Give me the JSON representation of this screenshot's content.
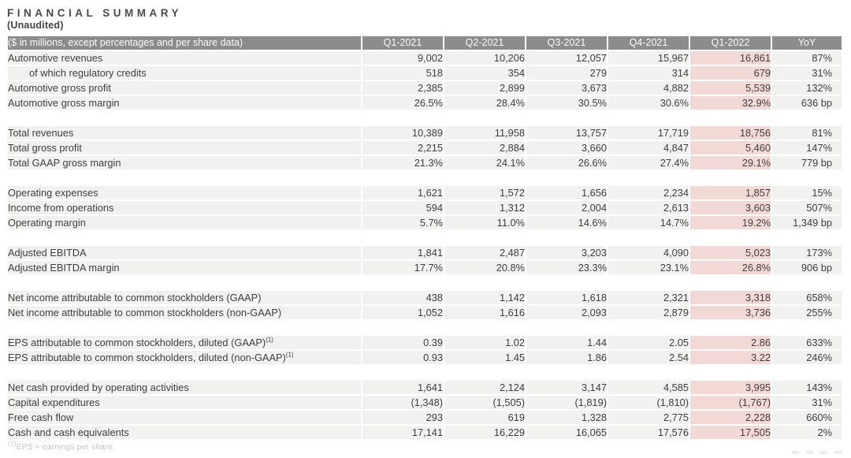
{
  "page": {
    "title": "FINANCIAL SUMMARY",
    "subtitle": "(Unaudited)",
    "footnote": {
      "sup": "(1)",
      "text": "EPS = earnings per share."
    }
  },
  "colors": {
    "header_bg": "#8c8c8c",
    "header_text": "#fbfbfb",
    "row_bg": "#f1f1f0",
    "highlight_bg": "#f3d9d6",
    "text": "#3e3e3e",
    "title_text": "#4a4a4a",
    "footnote_text": "#c4c3c2"
  },
  "table": {
    "header": {
      "label": "($ in millions, except percentages and per share data)",
      "columns": [
        "Q1-2021",
        "Q2-2021",
        "Q3-2021",
        "Q4-2021",
        "Q1-2022",
        "YoY"
      ]
    },
    "highlight_column_index": 4,
    "groups": [
      {
        "rows": [
          {
            "label": "Automotive revenues",
            "values": [
              "9,002",
              "10,206",
              "12,057",
              "15,967",
              "16,861",
              "87%"
            ]
          },
          {
            "label": "of which regulatory credits",
            "indent": true,
            "values": [
              "518",
              "354",
              "279",
              "314",
              "679",
              "31%"
            ]
          },
          {
            "label": "Automotive gross profit",
            "values": [
              "2,385",
              "2,899",
              "3,673",
              "4,882",
              "5,539",
              "132%"
            ]
          },
          {
            "label": "Automotive gross margin",
            "values": [
              "26.5%",
              "28.4%",
              "30.5%",
              "30.6%",
              "32.9%",
              "636 bp"
            ]
          }
        ]
      },
      {
        "rows": [
          {
            "label": "Total revenues",
            "values": [
              "10,389",
              "11,958",
              "13,757",
              "17,719",
              "18,756",
              "81%"
            ]
          },
          {
            "label": "Total gross profit",
            "values": [
              "2,215",
              "2,884",
              "3,660",
              "4,847",
              "5,460",
              "147%"
            ]
          },
          {
            "label": "Total GAAP gross margin",
            "values": [
              "21.3%",
              "24.1%",
              "26.6%",
              "27.4%",
              "29.1%",
              "779 bp"
            ]
          }
        ]
      },
      {
        "rows": [
          {
            "label": "Operating expenses",
            "values": [
              "1,621",
              "1,572",
              "1,656",
              "2,234",
              "1,857",
              "15%"
            ]
          },
          {
            "label": "Income from operations",
            "values": [
              "594",
              "1,312",
              "2,004",
              "2,613",
              "3,603",
              "507%"
            ]
          },
          {
            "label": "Operating margin",
            "values": [
              "5.7%",
              "11.0%",
              "14.6%",
              "14.7%",
              "19.2%",
              "1,349 bp"
            ]
          }
        ]
      },
      {
        "rows": [
          {
            "label": "Adjusted EBITDA",
            "values": [
              "1,841",
              "2,487",
              "3,203",
              "4,090",
              "5,023",
              "173%"
            ]
          },
          {
            "label": "Adjusted EBITDA margin",
            "values": [
              "17.7%",
              "20.8%",
              "23.3%",
              "23.1%",
              "26.8%",
              "906 bp"
            ]
          }
        ]
      },
      {
        "rows": [
          {
            "label": "Net income attributable to common stockholders (GAAP)",
            "values": [
              "438",
              "1,142",
              "1,618",
              "2,321",
              "3,318",
              "658%"
            ]
          },
          {
            "label": "Net income attributable to common stockholders (non-GAAP)",
            "values": [
              "1,052",
              "1,616",
              "2,093",
              "2,879",
              "3,736",
              "255%"
            ]
          }
        ]
      },
      {
        "rows": [
          {
            "label": "EPS attributable to common stockholders, diluted (GAAP)",
            "sup": "(1)",
            "values": [
              "0.39",
              "1.02",
              "1.44",
              "2.05",
              "2.86",
              "633%"
            ]
          },
          {
            "label": "EPS attributable to common stockholders, diluted (non-GAAP)",
            "sup": "(1)",
            "values": [
              "0.93",
              "1.45",
              "1.86",
              "2.54",
              "3.22",
              "246%"
            ]
          }
        ]
      },
      {
        "rows": [
          {
            "label": "Net cash provided by operating activities",
            "values": [
              "1,641",
              "2,124",
              "3,147",
              "4,585",
              "3,995",
              "143%"
            ]
          },
          {
            "label": "Capital expenditures",
            "values": [
              "(1,348)",
              "(1,505)",
              "(1,819)",
              "(1,810)",
              "(1,767)",
              "31%"
            ]
          },
          {
            "label": "Free cash flow",
            "values": [
              "293",
              "619",
              "1,328",
              "2,775",
              "2,228",
              "660%"
            ]
          },
          {
            "label": "Cash and cash equivalents",
            "values": [
              "17,141",
              "16,229",
              "16,065",
              "17,576",
              "17,505",
              "2%"
            ]
          }
        ]
      }
    ]
  }
}
